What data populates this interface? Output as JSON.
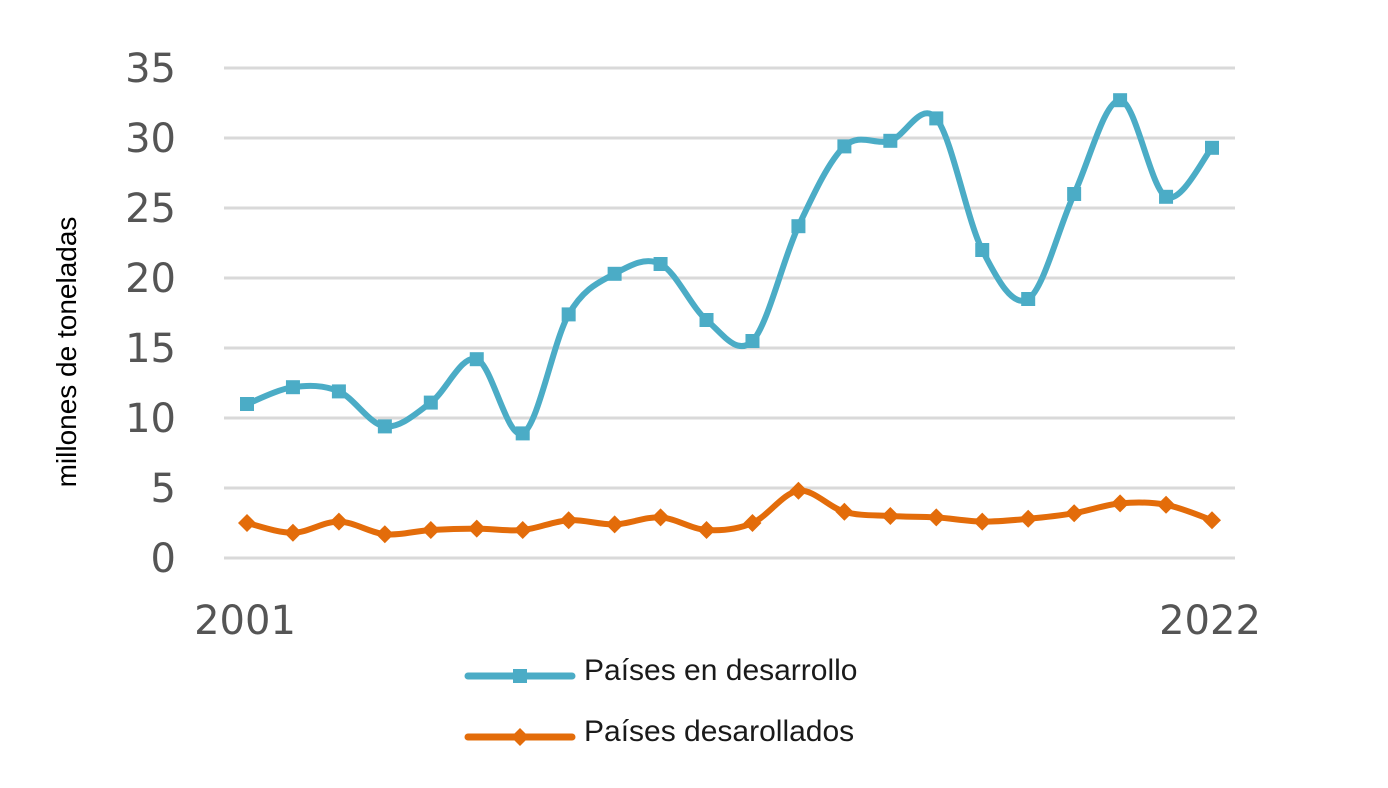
{
  "chart_data": {
    "type": "line",
    "title": "",
    "xlabel": "",
    "ylabel": "millones de toneladas",
    "ylim": [
      0,
      35
    ],
    "yticks": [
      0,
      5,
      10,
      15,
      20,
      25,
      30,
      35
    ],
    "x": [
      2001,
      2002,
      2003,
      2004,
      2005,
      2006,
      2007,
      2008,
      2009,
      2010,
      2011,
      2012,
      2013,
      2014,
      2015,
      2016,
      2017,
      2018,
      2019,
      2020,
      2021,
      2022
    ],
    "x_tick_labels": [
      "2001",
      "2022"
    ],
    "grid": "horizontal",
    "legend_position": "bottom",
    "smooth": true,
    "series": [
      {
        "name": "Países en desarrollo",
        "color": "#4bacc6",
        "marker": "square",
        "values": [
          11.0,
          12.2,
          11.9,
          9.4,
          11.1,
          14.2,
          8.9,
          17.4,
          20.3,
          21.0,
          17.0,
          15.5,
          23.7,
          29.4,
          29.8,
          31.4,
          22.0,
          18.5,
          26.0,
          32.7,
          25.8,
          29.3
        ]
      },
      {
        "name": "Países desarollados",
        "color": "#e36c0a",
        "marker": "diamond",
        "values": [
          2.5,
          1.8,
          2.6,
          1.7,
          2.0,
          2.1,
          2.0,
          2.7,
          2.4,
          2.9,
          2.0,
          2.5,
          4.8,
          3.3,
          3.0,
          2.9,
          2.6,
          2.8,
          3.2,
          3.9,
          3.8,
          2.7
        ]
      }
    ]
  }
}
